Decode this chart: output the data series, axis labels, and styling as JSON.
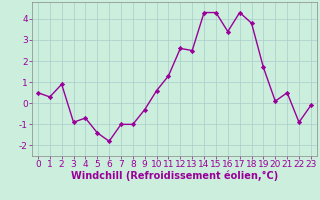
{
  "x": [
    0,
    1,
    2,
    3,
    4,
    5,
    6,
    7,
    8,
    9,
    10,
    11,
    12,
    13,
    14,
    15,
    16,
    17,
    18,
    19,
    20,
    21,
    22,
    23
  ],
  "y": [
    0.5,
    0.3,
    0.9,
    -0.9,
    -0.7,
    -1.4,
    -1.8,
    -1.0,
    -1.0,
    -0.3,
    0.6,
    1.3,
    2.6,
    2.5,
    4.3,
    4.3,
    3.4,
    4.3,
    3.8,
    1.7,
    0.1,
    0.5,
    -0.9,
    -0.1
  ],
  "line_color": "#990099",
  "marker": "D",
  "marker_size": 2.2,
  "bg_color": "#cceedd",
  "grid_color": "#aacccc",
  "xlabel": "Windchill (Refroidissement éolien,°C)",
  "xlabel_color": "#990099",
  "tick_color": "#990099",
  "ylim": [
    -2.5,
    4.8
  ],
  "yticks": [
    -2,
    -1,
    0,
    1,
    2,
    3,
    4
  ],
  "xlim": [
    -0.5,
    23.5
  ],
  "xticks": [
    0,
    1,
    2,
    3,
    4,
    5,
    6,
    7,
    8,
    9,
    10,
    11,
    12,
    13,
    14,
    15,
    16,
    17,
    18,
    19,
    20,
    21,
    22,
    23
  ],
  "line_width": 1.0,
  "xlabel_fontsize": 7.0,
  "tick_fontsize": 6.5,
  "spine_color": "#888888"
}
